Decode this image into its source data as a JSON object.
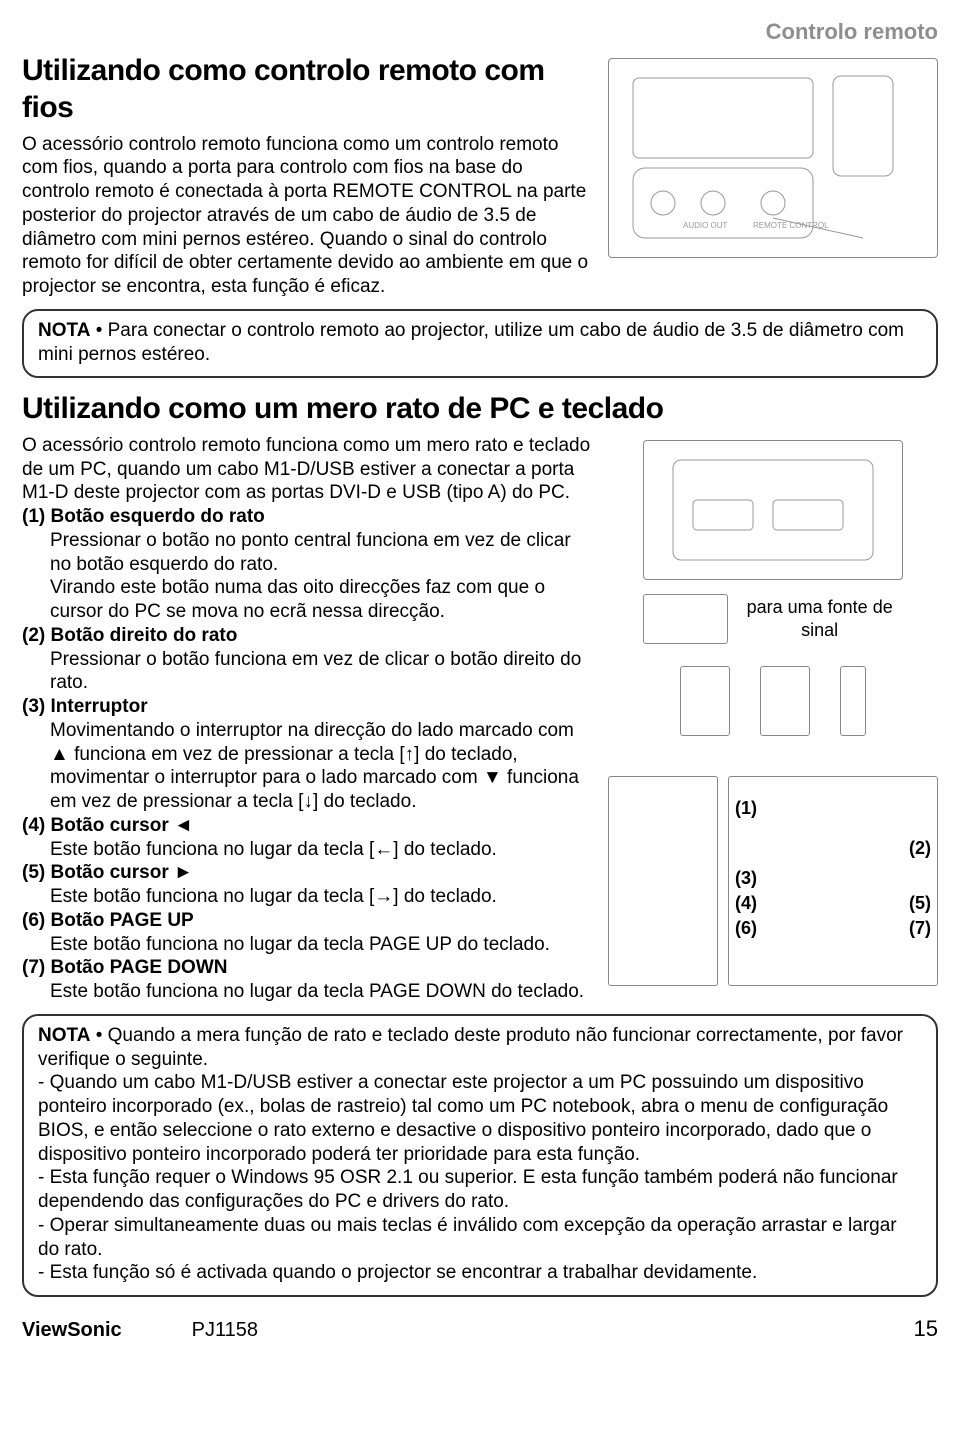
{
  "colors": {
    "label_grey": "#8a8f94",
    "text": "#000000",
    "bg": "#ffffff",
    "border": "#333333"
  },
  "header": {
    "section_label": "Controlo remoto"
  },
  "section1": {
    "title": "Utilizando como controlo remoto com fios",
    "body": "O acessório controlo remoto funciona como um controlo remoto com fios, quando a porta para controlo com fios na base do controlo remoto é conectada à porta REMOTE CONTROL na parte posterior do projector através de um cabo de áudio de 3.5 de diâmetro com mini pernos estéreo. Quando o sinal do controlo remoto for difícil de obter certamente devido ao ambiente em que o projector se encontra, esta função é eficaz.",
    "note_label": "NOTA",
    "note_text": " • Para conectar o controlo remoto ao projector, utilize um cabo de áudio de 3.5 de diâmetro com mini pernos estéreo."
  },
  "section2": {
    "title": "Utilizando como um mero rato de PC e teclado",
    "intro": "O acessório controlo remoto funciona como um mero rato e teclado de um PC, quando um cabo M1-D/USB estiver a conectar a porta M1-D deste projector com as portas DVI-D e USB (tipo A) do PC.",
    "fig_caption": "para uma fonte de sinal",
    "items": [
      {
        "head": "(1) Botão esquerdo do rato",
        "lines": [
          "Pressionar o botão no ponto central funciona em vez de clicar no botão esquerdo do rato.",
          "Virando este botão numa das oito direcções faz com que o cursor do PC se mova no ecrã nessa direcção."
        ]
      },
      {
        "head": "(2) Botão direito do rato",
        "lines": [
          "Pressionar o botão funciona em vez de clicar o botão direito do rato."
        ]
      },
      {
        "head": "(3) Interruptor",
        "lines": [
          "Movimentando o interruptor na direcção do lado marcado com ▲ funciona em vez de pressionar a tecla [↑] do teclado, movimentar o interruptor para o lado marcado com ▼ funciona em vez de pressionar a tecla [↓] do teclado."
        ]
      },
      {
        "head": "(4) Botão cursor ◄",
        "lines": [
          "Este botão funciona no lugar da tecla [←] do teclado."
        ]
      },
      {
        "head": "(5) Botão cursor ►",
        "lines": [
          "Este botão funciona no lugar da tecla [→] do teclado."
        ]
      },
      {
        "head": "(6) Botão PAGE UP",
        "lines": [
          "Este botão funciona no lugar da tecla PAGE UP do teclado."
        ]
      },
      {
        "head": "(7) Botão PAGE DOWN",
        "lines": [
          "Este botão funciona no lugar da tecla PAGE DOWN do teclado."
        ]
      }
    ],
    "callouts": {
      "c1": "(1)",
      "c2": "(2)",
      "c3": "(3)",
      "c4": "(4)",
      "c5": "(5)",
      "c6": "(6)",
      "c7": "(7)"
    },
    "note2_label": "NOTA",
    "note2_intro": " • Quando a mera função de rato e teclado deste produto não funcionar correctamente, por favor verifique o seguinte.",
    "note2_bullets": [
      "- Quando um cabo M1-D/USB estiver a conectar este projector a um PC possuindo um dispositivo ponteiro incorporado (ex., bolas de rastreio) tal como um PC notebook, abra o menu de configuração BIOS, e então seleccione o rato externo e desactive o dispositivo ponteiro incorporado, dado que o dispositivo ponteiro incorporado poderá ter prioridade para esta função.",
      "- Esta função requer o Windows 95 OSR 2.1 ou superior. E esta função também poderá não funcionar dependendo das configurações do PC e drivers do rato.",
      "- Operar simultaneamente duas ou mais teclas é inválido com excepção da operação arrastar e largar do rato.",
      "- Esta função só é activada quando o projector se encontrar a trabalhar devidamente."
    ]
  },
  "footer": {
    "brand": "ViewSonic",
    "model": "PJ1158",
    "page": "15"
  }
}
